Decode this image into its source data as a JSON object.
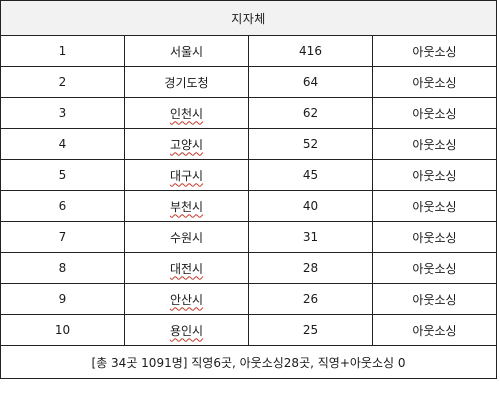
{
  "header": {
    "title": "지자체"
  },
  "rows": [
    {
      "rank": "1",
      "name": "서울시",
      "count": "416",
      "type": "아웃소싱",
      "underlined": false
    },
    {
      "rank": "2",
      "name": "경기도청",
      "count": "64",
      "type": "아웃소싱",
      "underlined": false
    },
    {
      "rank": "3",
      "name": "인천시",
      "count": "62",
      "type": "아웃소싱",
      "underlined": true
    },
    {
      "rank": "4",
      "name": "고양시",
      "count": "52",
      "type": "아웃소싱",
      "underlined": true
    },
    {
      "rank": "5",
      "name": "대구시",
      "count": "45",
      "type": "아웃소싱",
      "underlined": true
    },
    {
      "rank": "6",
      "name": "부천시",
      "count": "40",
      "type": "아웃소싱",
      "underlined": true
    },
    {
      "rank": "7",
      "name": "수원시",
      "count": "31",
      "type": "아웃소싱",
      "underlined": false
    },
    {
      "rank": "8",
      "name": "대전시",
      "count": "28",
      "type": "아웃소싱",
      "underlined": true
    },
    {
      "rank": "9",
      "name": "안산시",
      "count": "26",
      "type": "아웃소싱",
      "underlined": true
    },
    {
      "rank": "10",
      "name": "용인시",
      "count": "25",
      "type": "아웃소싱",
      "underlined": true
    }
  ],
  "footer": {
    "summary": "[총 34곳 1091명] 직영6곳, 아웃소싱28곳, 직영+아웃소싱 0"
  }
}
